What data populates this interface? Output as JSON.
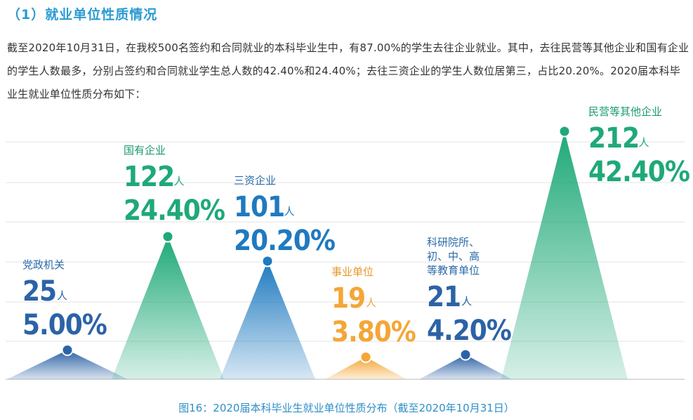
{
  "heading": "（1）就业单位性质情况",
  "intro": "截至2020年10月31日，在我校500名签约和合同就业的本科毕业生中，有87.00%的学生去往企业就业。其中，去往民营等其他企业和国有企业的学生人数最多，分别占签约和合同就业学生总人数的42.40%和24.40%；去往三资企业的学生人数位居第三，占比20.20%。2020届本科毕业生就业单位性质分布如下：",
  "caption": "图16：2020届本科毕业生就业单位性质分布（截至2020年10月31日）",
  "chart_data": {
    "type": "area",
    "unit": "人",
    "ylim": [
      0,
      212
    ],
    "grid": true,
    "categories": [
      {
        "label": [
          "党政机关"
        ],
        "count": 25,
        "percent": "5.00%",
        "color": "#2c63a6"
      },
      {
        "label": [
          "国有企业"
        ],
        "count": 122,
        "percent": "24.40%",
        "color": "#1fa978"
      },
      {
        "label": [
          "三资企业"
        ],
        "count": 101,
        "percent": "20.20%",
        "color": "#1f7ac0"
      },
      {
        "label": [
          "事业单位"
        ],
        "count": 19,
        "percent": "3.80%",
        "color": "#f4a637"
      },
      {
        "label": [
          "科研院所、",
          "初、中、高",
          "等教育单位"
        ],
        "count": 21,
        "percent": "4.20%",
        "color": "#2c63a6"
      },
      {
        "label": [
          "民营等其他企业"
        ],
        "count": 212,
        "percent": "42.40%",
        "color": "#1fa978"
      }
    ]
  }
}
